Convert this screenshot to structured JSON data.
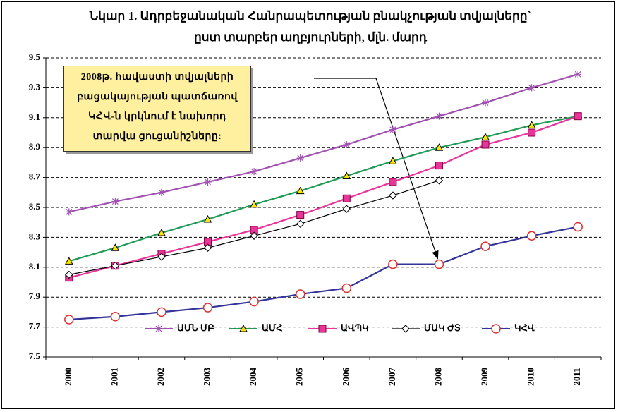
{
  "chart_data": {
    "type": "line",
    "title": "Նկար 1. Ադրբեջանական Հանրապետության բնակչության տվյալները` ըստ տարբեր աղբյուրների, մլն. մարդ",
    "annotation": "2008թ. հավաստի տվյալների բացակայության պատճառով ԿՀՎ-ն կրկնում է նախորդ տարվա ցուցանիշները:",
    "categories": [
      "2000",
      "2001",
      "2002",
      "2003",
      "2004",
      "2005",
      "2006",
      "2007",
      "2008",
      "2009",
      "2010",
      "2011"
    ],
    "ylim": [
      7.5,
      9.5
    ],
    "yticks": [
      7.5,
      7.7,
      7.9,
      8.1,
      8.3,
      8.5,
      8.7,
      8.9,
      9.1,
      9.3,
      9.5
    ],
    "grid": true,
    "legend": "lower right",
    "series": [
      {
        "name": "ԱՄՆ ՄԲ",
        "marker": "star",
        "color": "#a050b0",
        "marker_color": "#a050b0",
        "values": [
          8.47,
          8.54,
          8.6,
          8.67,
          8.74,
          8.83,
          8.92,
          9.02,
          9.11,
          9.2,
          9.3,
          9.39
        ]
      },
      {
        "name": "ԱՄՀ",
        "marker": "triangle",
        "color": "#1f9a56",
        "marker_color": "#ffe600",
        "values": [
          8.14,
          8.23,
          8.33,
          8.42,
          8.52,
          8.61,
          8.71,
          8.81,
          8.9,
          8.97,
          9.05,
          9.11
        ]
      },
      {
        "name": "ԱՎՊԿ",
        "marker": "square",
        "color": "#e8359a",
        "marker_color": "#e8359a",
        "values": [
          8.03,
          8.11,
          8.19,
          8.27,
          8.35,
          8.45,
          8.56,
          8.67,
          8.78,
          8.92,
          9.0,
          9.11
        ]
      },
      {
        "name": "ՄԱԿ ԺՏ",
        "marker": "diamond",
        "color": "#000000",
        "marker_color": "#ffffff",
        "values": [
          8.05,
          8.11,
          8.17,
          8.23,
          8.31,
          8.39,
          8.49,
          8.58,
          8.68,
          null,
          null,
          null
        ]
      },
      {
        "name": "ԿՀՎ",
        "marker": "circle",
        "color": "#333399",
        "marker_color": "#ffffff",
        "values": [
          7.75,
          7.77,
          7.8,
          7.83,
          7.87,
          7.92,
          7.96,
          8.12,
          8.12,
          8.24,
          8.31,
          8.37
        ]
      }
    ]
  }
}
